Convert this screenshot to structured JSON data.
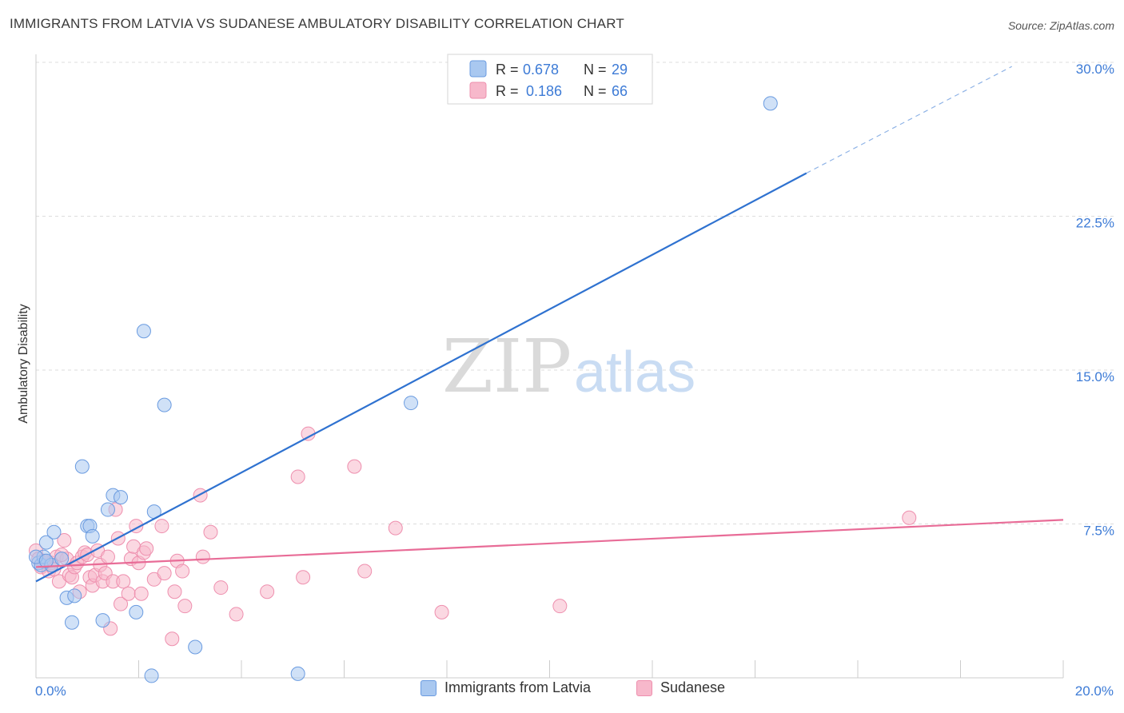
{
  "title": "IMMIGRANTS FROM LATVIA VS SUDANESE AMBULATORY DISABILITY CORRELATION CHART",
  "source": "Source: ZipAtlas.com",
  "watermark": {
    "zip": "ZIP",
    "atlas": "atlas"
  },
  "colors": {
    "blue_fill": "#a9c8f0",
    "blue_stroke": "#6a9be0",
    "blue_line": "#2f72d0",
    "pink_fill": "#f7b8cb",
    "pink_stroke": "#ee8fae",
    "pink_line": "#e86c97",
    "tick_blue": "#3d7bd6",
    "grid": "#dddddd"
  },
  "legend": {
    "rows": [
      {
        "r_label": "R =",
        "r_value": "0.678",
        "n_label": "N =",
        "n_value": "29",
        "series": "blue"
      },
      {
        "r_label": "R =",
        "r_value": "0.186",
        "n_label": "N =",
        "n_value": "66",
        "series": "pink"
      }
    ]
  },
  "bottom_legend": [
    {
      "label": "Immigrants from Latvia",
      "series": "blue"
    },
    {
      "label": "Sudanese",
      "series": "pink"
    }
  ],
  "chart_data": {
    "type": "scatter",
    "xlabel": "",
    "ylabel": "Ambulatory Disability",
    "xlim": [
      0,
      20
    ],
    "ylim": [
      0,
      30
    ],
    "x_tick_labels": [
      {
        "value": 0,
        "label": "0.0%"
      },
      {
        "value": 20,
        "label": "20.0%"
      }
    ],
    "y_tick_labels": [
      {
        "value": 7.5,
        "label": "7.5%"
      },
      {
        "value": 15,
        "label": "15.0%"
      },
      {
        "value": 22.5,
        "label": "22.5%"
      },
      {
        "value": 30,
        "label": "30.0%"
      }
    ],
    "grid": "horizontal dashed",
    "legend_position": "top-center",
    "series": [
      {
        "name": "Immigrants from Latvia",
        "color": "blue",
        "trend": {
          "x0": 0,
          "y0": 4.7,
          "x1": 15.0,
          "y1": 24.6,
          "dashed_to_x": 19.0,
          "dashed_to_y": 29.8
        },
        "points": [
          [
            0.05,
            5.6
          ],
          [
            0.1,
            5.5
          ],
          [
            0.15,
            5.9
          ],
          [
            0.2,
            6.6
          ],
          [
            0.3,
            5.5
          ],
          [
            0.35,
            7.1
          ],
          [
            0.5,
            5.8
          ],
          [
            0.6,
            3.9
          ],
          [
            0.75,
            4.0
          ],
          [
            0.7,
            2.7
          ],
          [
            0.9,
            10.3
          ],
          [
            1.0,
            7.4
          ],
          [
            1.05,
            7.4
          ],
          [
            1.1,
            6.9
          ],
          [
            1.3,
            2.8
          ],
          [
            1.4,
            8.2
          ],
          [
            1.5,
            8.9
          ],
          [
            1.65,
            8.8
          ],
          [
            1.95,
            3.2
          ],
          [
            2.1,
            16.9
          ],
          [
            2.25,
            0.1
          ],
          [
            2.3,
            8.1
          ],
          [
            2.5,
            13.3
          ],
          [
            3.1,
            1.5
          ],
          [
            5.1,
            0.2
          ],
          [
            7.3,
            13.4
          ],
          [
            14.3,
            28.0
          ],
          [
            0.0,
            5.9
          ],
          [
            0.2,
            5.7
          ]
        ]
      },
      {
        "name": "Sudanese",
        "color": "pink",
        "trend": {
          "x0": 0,
          "y0": 5.4,
          "x1": 20,
          "y1": 7.7
        },
        "points": [
          [
            0.0,
            6.2
          ],
          [
            0.05,
            5.8
          ],
          [
            0.1,
            5.4
          ],
          [
            0.2,
            5.6
          ],
          [
            0.25,
            5.2
          ],
          [
            0.3,
            5.6
          ],
          [
            0.4,
            5.9
          ],
          [
            0.45,
            4.7
          ],
          [
            0.55,
            6.7
          ],
          [
            0.6,
            5.8
          ],
          [
            0.65,
            5.0
          ],
          [
            0.7,
            4.9
          ],
          [
            0.75,
            5.4
          ],
          [
            0.8,
            5.6
          ],
          [
            0.85,
            4.2
          ],
          [
            0.9,
            5.9
          ],
          [
            0.95,
            6.1
          ],
          [
            1.0,
            6.0
          ],
          [
            1.05,
            4.9
          ],
          [
            1.1,
            4.5
          ],
          [
            1.15,
            5.0
          ],
          [
            1.2,
            6.2
          ],
          [
            1.25,
            5.5
          ],
          [
            1.3,
            4.7
          ],
          [
            1.35,
            5.1
          ],
          [
            1.4,
            5.9
          ],
          [
            1.45,
            2.4
          ],
          [
            1.5,
            4.7
          ],
          [
            1.55,
            8.2
          ],
          [
            1.6,
            6.8
          ],
          [
            1.65,
            3.6
          ],
          [
            1.7,
            4.7
          ],
          [
            1.8,
            4.1
          ],
          [
            1.85,
            5.8
          ],
          [
            1.9,
            6.4
          ],
          [
            1.95,
            7.4
          ],
          [
            2.0,
            5.6
          ],
          [
            2.05,
            4.1
          ],
          [
            2.1,
            6.1
          ],
          [
            2.15,
            6.3
          ],
          [
            2.3,
            4.8
          ],
          [
            2.45,
            7.4
          ],
          [
            2.5,
            5.1
          ],
          [
            2.65,
            1.9
          ],
          [
            2.7,
            4.2
          ],
          [
            2.75,
            5.7
          ],
          [
            2.85,
            5.2
          ],
          [
            2.9,
            3.5
          ],
          [
            3.2,
            8.9
          ],
          [
            3.25,
            5.9
          ],
          [
            3.4,
            7.1
          ],
          [
            3.6,
            4.4
          ],
          [
            3.9,
            3.1
          ],
          [
            4.5,
            4.2
          ],
          [
            5.1,
            9.8
          ],
          [
            5.3,
            11.9
          ],
          [
            5.2,
            4.9
          ],
          [
            6.2,
            10.3
          ],
          [
            6.4,
            5.2
          ],
          [
            7.0,
            7.3
          ],
          [
            7.9,
            3.2
          ],
          [
            10.2,
            3.5
          ],
          [
            17.0,
            7.8
          ],
          [
            0.15,
            5.7
          ],
          [
            0.35,
            5.3
          ],
          [
            0.5,
            6.0
          ]
        ]
      }
    ]
  }
}
